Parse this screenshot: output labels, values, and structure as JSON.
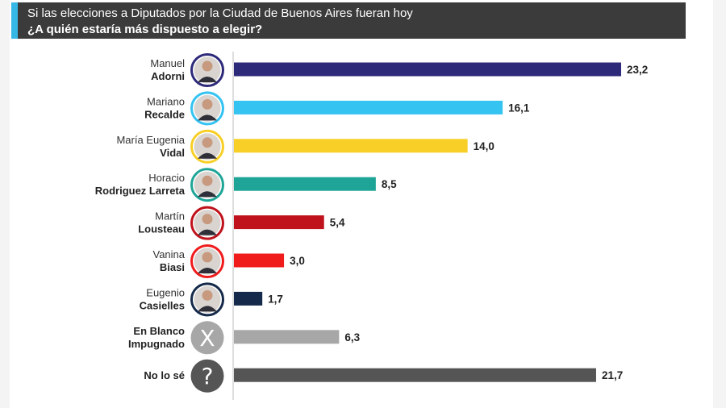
{
  "header": {
    "subtitle": "Si las elecciones a Diputados por la Ciudad de Buenos Aires fueran hoy",
    "question": "¿A quién estaría más dispuesto a elegir?"
  },
  "chart_data": {
    "type": "bar",
    "orientation": "horizontal",
    "xlim": [
      0,
      25
    ],
    "grid": false,
    "categories": [
      {
        "first": "Manuel",
        "last": "Adorni",
        "value": 23.2,
        "label": "23,2",
        "color": "#2e2a7a",
        "ring": "#2e2a7a",
        "icon": "portrait"
      },
      {
        "first": "Mariano",
        "last": "Recalde",
        "value": 16.1,
        "label": "16,1",
        "color": "#35c3f2",
        "ring": "#35c3f2",
        "icon": "portrait"
      },
      {
        "first": "María Eugenia",
        "last": "Vidal",
        "value": 14.0,
        "label": "14,0",
        "color": "#f8cf26",
        "ring": "#f8cf26",
        "icon": "portrait"
      },
      {
        "first": "Horacio",
        "last": "Rodriguez Larreta",
        "value": 8.5,
        "label": "8,5",
        "color": "#1fa597",
        "ring": "#1fa597",
        "icon": "portrait"
      },
      {
        "first": "Martín",
        "last": "Lousteau",
        "value": 5.4,
        "label": "5,4",
        "color": "#c0121c",
        "ring": "#c0121c",
        "icon": "portrait"
      },
      {
        "first": "Vanina",
        "last": "Biasi",
        "value": 3.0,
        "label": "3,0",
        "color": "#f01b1b",
        "ring": "#f01b1b",
        "icon": "portrait"
      },
      {
        "first": "Eugenio",
        "last": "Casielles",
        "value": 1.7,
        "label": "1,7",
        "color": "#152a4a",
        "ring": "#152a4a",
        "icon": "portrait"
      },
      {
        "first": "",
        "last": "En Blanco Impugnado",
        "lines": [
          "En Blanco",
          "Impugnado"
        ],
        "value": 6.3,
        "label": "6,3",
        "color": "#a7a7a7",
        "ring": "#a7a7a7",
        "icon": "x-icon",
        "glyph": "X"
      },
      {
        "first": "",
        "last": "No lo sé",
        "lines": [
          "No lo sé"
        ],
        "value": 21.7,
        "label": "21,7",
        "color": "#555555",
        "ring": "#555555",
        "icon": "question-icon",
        "glyph": "?"
      }
    ]
  }
}
